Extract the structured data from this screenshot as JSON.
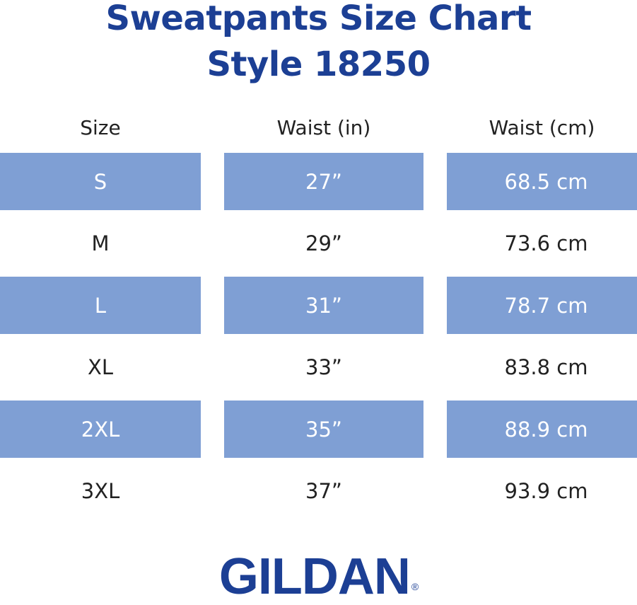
{
  "title": [
    "Sweatpants Size Chart",
    "Style 18250"
  ],
  "table": {
    "headers": [
      "Size",
      "Waist (in)",
      "Waist (cm)"
    ],
    "rows": [
      [
        "S",
        "27”",
        "68.5 cm"
      ],
      [
        "M",
        "29”",
        "73.6 cm"
      ],
      [
        "L",
        "31”",
        "78.7 cm"
      ],
      [
        "XL",
        "33”",
        "83.8 cm"
      ],
      [
        "2XL",
        "35”",
        "88.9 cm"
      ],
      [
        "3XL",
        "37”",
        "93.9 cm"
      ]
    ]
  },
  "logo": {
    "text": "GILDAN",
    "mark": "®"
  }
}
